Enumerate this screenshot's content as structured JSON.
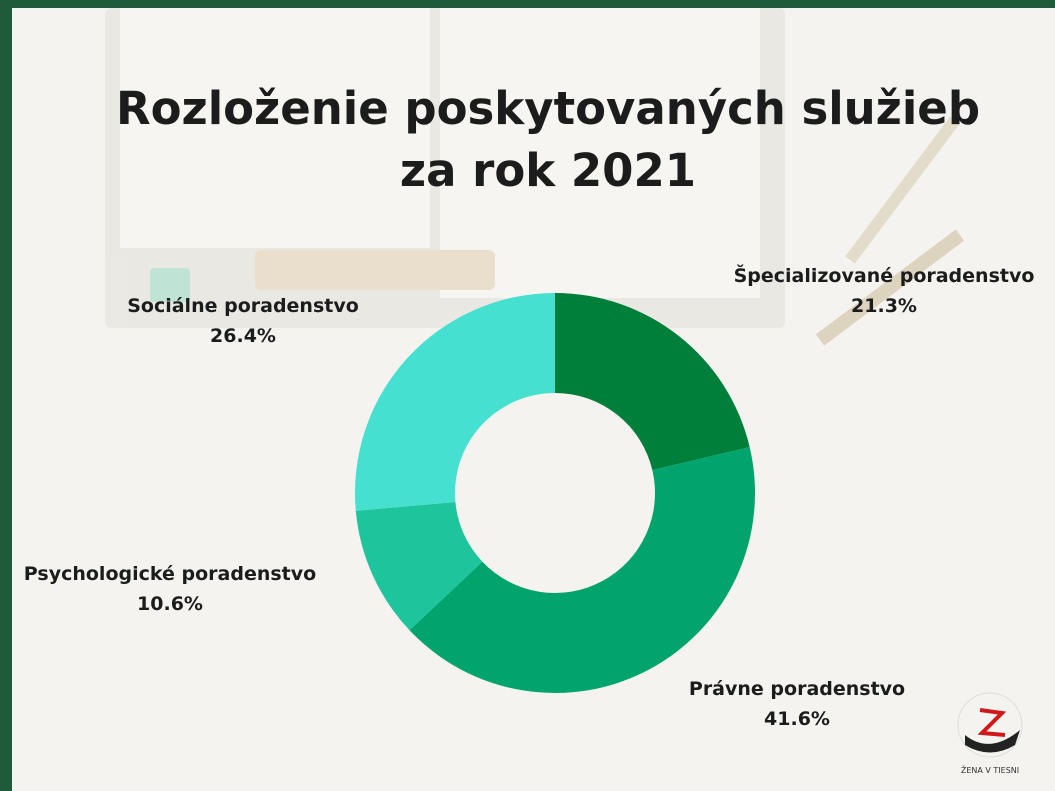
{
  "chart_data": {
    "type": "donut",
    "title": "Rozloženie poskytovaných služieb za rok 2021",
    "categories": [
      "Špecializované poradenstvo",
      "Právne poradenstvo",
      "Psychologické poradenstvo",
      "Sociálne poradenstvo"
    ],
    "values": [
      21.3,
      41.6,
      10.6,
      26.4
    ],
    "value_labels": [
      "21.3%",
      "41.6%",
      "10.6%",
      "26.4%"
    ],
    "colors": [
      "#007f3a",
      "#00a46c",
      "#1ec49b",
      "#45e0cf"
    ]
  },
  "logo": {
    "text": "ŽENA V TIESNI"
  }
}
